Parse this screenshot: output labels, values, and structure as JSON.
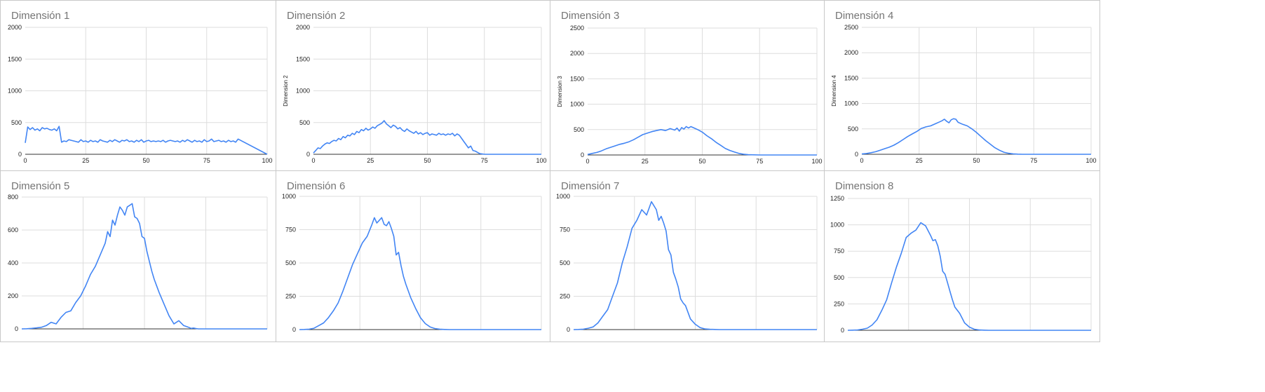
{
  "style": {
    "line_color": "#4285f4",
    "grid_color": "#dddddd",
    "baseline_color": "#333333",
    "title_color": "#757575"
  },
  "chart_data": [
    {
      "type": "line",
      "title": "Dimensión 1",
      "xlabel": "",
      "ylabel": "",
      "xlim": [
        0,
        100
      ],
      "ylim": [
        0,
        2000
      ],
      "xticks": [
        0,
        25,
        50,
        75,
        100
      ],
      "yticks": [
        0,
        500,
        1000,
        1500,
        2000
      ],
      "x_ticks_visible": true,
      "series": [
        {
          "x": [
            0,
            1,
            2,
            3,
            4,
            5,
            6,
            7,
            8,
            9,
            10,
            11,
            12,
            13,
            14,
            15,
            16,
            17,
            18,
            19,
            20,
            21,
            22,
            23,
            24,
            25,
            26,
            27,
            28,
            29,
            30,
            31,
            32,
            33,
            34,
            35,
            36,
            37,
            38,
            39,
            40,
            41,
            42,
            43,
            44,
            45,
            46,
            47,
            48,
            49,
            50,
            51,
            52,
            53,
            54,
            55,
            56,
            57,
            58,
            59,
            60,
            61,
            62,
            63,
            64,
            65,
            66,
            67,
            68,
            69,
            70,
            71,
            72,
            73,
            74,
            75,
            76,
            77,
            78,
            79,
            80,
            81,
            82,
            83,
            84,
            85,
            86,
            87,
            88,
            100
          ],
          "y": [
            180,
            430,
            390,
            420,
            380,
            400,
            370,
            420,
            400,
            410,
            390,
            380,
            400,
            370,
            440,
            190,
            210,
            200,
            230,
            220,
            210,
            200,
            190,
            230,
            200,
            210,
            190,
            220,
            200,
            210,
            190,
            230,
            210,
            200,
            190,
            220,
            200,
            230,
            210,
            190,
            220,
            210,
            230,
            200,
            210,
            190,
            220,
            200,
            230,
            190,
            210,
            220,
            200,
            210,
            200,
            210,
            200,
            220,
            190,
            210,
            220,
            210,
            200,
            210,
            190,
            220,
            200,
            230,
            210,
            190,
            220,
            200,
            210,
            190,
            230,
            200,
            210,
            240,
            200,
            210,
            220,
            200,
            210,
            190,
            220,
            200,
            210,
            190,
            240,
            0
          ]
        }
      ]
    },
    {
      "type": "line",
      "title": "Dimensión 2",
      "xlabel": "",
      "ylabel": "Dimension 2",
      "xlim": [
        0,
        100
      ],
      "ylim": [
        0,
        2000
      ],
      "xticks": [
        0,
        25,
        50,
        75,
        100
      ],
      "yticks": [
        0,
        500,
        1000,
        1500,
        2000
      ],
      "x_ticks_visible": true,
      "series": [
        {
          "x": [
            0,
            1,
            2,
            3,
            4,
            5,
            6,
            7,
            8,
            9,
            10,
            11,
            12,
            13,
            14,
            15,
            16,
            17,
            18,
            19,
            20,
            21,
            22,
            23,
            24,
            25,
            26,
            27,
            28,
            29,
            30,
            31,
            32,
            33,
            34,
            35,
            36,
            37,
            38,
            39,
            40,
            41,
            42,
            43,
            44,
            45,
            46,
            47,
            48,
            49,
            50,
            51,
            52,
            53,
            54,
            55,
            56,
            57,
            58,
            59,
            60,
            61,
            62,
            63,
            64,
            65,
            66,
            67,
            68,
            69,
            70,
            71,
            72,
            73,
            75,
            100
          ],
          "y": [
            20,
            60,
            100,
            90,
            130,
            160,
            180,
            170,
            200,
            220,
            210,
            250,
            230,
            280,
            260,
            300,
            290,
            330,
            310,
            360,
            340,
            390,
            370,
            410,
            380,
            400,
            430,
            410,
            450,
            470,
            490,
            530,
            480,
            450,
            420,
            460,
            440,
            400,
            420,
            380,
            360,
            400,
            370,
            350,
            330,
            360,
            320,
            340,
            310,
            330,
            340,
            300,
            320,
            310,
            300,
            330,
            310,
            320,
            300,
            320,
            310,
            330,
            290,
            320,
            300,
            250,
            200,
            150,
            100,
            130,
            60,
            50,
            30,
            10,
            0,
            0
          ]
        }
      ]
    },
    {
      "type": "line",
      "title": "Dimensión 3",
      "xlabel": "",
      "ylabel": "Dimension 3",
      "xlim": [
        0,
        100
      ],
      "ylim": [
        0,
        2500
      ],
      "xticks": [
        0,
        25,
        50,
        75,
        100
      ],
      "yticks": [
        0,
        500,
        1000,
        1500,
        2000,
        2500
      ],
      "x_ticks_visible": true,
      "series": [
        {
          "x": [
            0,
            2,
            4,
            6,
            8,
            10,
            12,
            14,
            16,
            18,
            20,
            22,
            24,
            26,
            28,
            30,
            32,
            34,
            36,
            38,
            39,
            40,
            41,
            42,
            43,
            44,
            45,
            46,
            47,
            48,
            50,
            52,
            54,
            56,
            58,
            60,
            62,
            64,
            66,
            68,
            70,
            75,
            100
          ],
          "y": [
            10,
            30,
            50,
            80,
            120,
            150,
            180,
            210,
            230,
            260,
            300,
            350,
            400,
            430,
            460,
            480,
            500,
            480,
            520,
            490,
            530,
            470,
            540,
            510,
            560,
            530,
            560,
            540,
            520,
            500,
            450,
            380,
            320,
            250,
            190,
            130,
            90,
            60,
            30,
            15,
            5,
            0,
            0
          ]
        }
      ]
    },
    {
      "type": "line",
      "title": "Dimensión 4",
      "xlabel": "",
      "ylabel": "Dimension 4",
      "xlim": [
        0,
        100
      ],
      "ylim": [
        0,
        2500
      ],
      "xticks": [
        0,
        25,
        50,
        75,
        100
      ],
      "yticks": [
        0,
        500,
        1000,
        1500,
        2000,
        2500
      ],
      "x_ticks_visible": true,
      "series": [
        {
          "x": [
            0,
            2,
            4,
            6,
            8,
            10,
            12,
            14,
            16,
            18,
            20,
            22,
            24,
            26,
            28,
            30,
            32,
            34,
            35,
            36,
            37,
            38,
            39,
            40,
            41,
            42,
            44,
            46,
            48,
            50,
            52,
            54,
            56,
            58,
            60,
            62,
            64,
            66,
            68,
            70,
            100
          ],
          "y": [
            5,
            15,
            30,
            50,
            80,
            110,
            140,
            180,
            230,
            290,
            350,
            400,
            450,
            510,
            540,
            560,
            600,
            640,
            660,
            690,
            650,
            620,
            680,
            700,
            690,
            630,
            590,
            560,
            500,
            430,
            350,
            270,
            200,
            130,
            80,
            40,
            20,
            8,
            3,
            0,
            0
          ]
        }
      ]
    },
    {
      "type": "line",
      "title": "Dimensión 5",
      "xlabel": "",
      "ylabel": "",
      "xlim": [
        0,
        100
      ],
      "ylim": [
        0,
        800
      ],
      "xticks": [
        0,
        25,
        50,
        75,
        100
      ],
      "yticks": [
        0,
        200,
        400,
        600,
        800
      ],
      "x_ticks_visible": false,
      "series": [
        {
          "x": [
            0,
            2,
            4,
            6,
            8,
            10,
            12,
            14,
            16,
            18,
            20,
            22,
            24,
            26,
            28,
            30,
            32,
            34,
            35,
            36,
            37,
            38,
            39,
            40,
            41,
            42,
            43,
            44,
            45,
            46,
            47,
            48,
            49,
            50,
            51,
            52,
            53,
            54,
            56,
            58,
            60,
            62,
            64,
            66,
            68,
            69,
            70,
            71,
            72,
            74,
            76,
            100
          ],
          "y": [
            0,
            1,
            3,
            6,
            10,
            20,
            40,
            30,
            70,
            100,
            110,
            160,
            200,
            260,
            330,
            380,
            450,
            520,
            590,
            560,
            660,
            630,
            690,
            740,
            720,
            690,
            740,
            750,
            760,
            680,
            670,
            640,
            560,
            550,
            470,
            410,
            350,
            300,
            220,
            150,
            80,
            30,
            50,
            20,
            10,
            3,
            5,
            2,
            0,
            0,
            0,
            0
          ]
        }
      ]
    },
    {
      "type": "line",
      "title": "Dimensión 6",
      "xlabel": "",
      "ylabel": "",
      "xlim": [
        0,
        100
      ],
      "ylim": [
        0,
        1000
      ],
      "xticks": [
        0,
        25,
        50,
        75,
        100
      ],
      "yticks": [
        0,
        250,
        500,
        750,
        1000
      ],
      "x_ticks_visible": false,
      "series": [
        {
          "x": [
            0,
            2,
            4,
            6,
            8,
            10,
            12,
            14,
            16,
            18,
            20,
            22,
            24,
            26,
            28,
            30,
            31,
            32,
            33,
            34,
            35,
            36,
            37,
            38,
            39,
            40,
            41,
            42,
            43,
            44,
            46,
            48,
            50,
            52,
            54,
            56,
            58,
            60,
            62,
            64,
            66,
            100
          ],
          "y": [
            0,
            1,
            3,
            10,
            30,
            50,
            90,
            140,
            200,
            290,
            390,
            490,
            570,
            650,
            700,
            790,
            840,
            800,
            820,
            840,
            790,
            780,
            810,
            760,
            700,
            560,
            580,
            480,
            400,
            340,
            240,
            160,
            90,
            45,
            20,
            8,
            3,
            1,
            0,
            0,
            0,
            0
          ]
        }
      ]
    },
    {
      "type": "line",
      "title": "Dimensión 7",
      "xlabel": "",
      "ylabel": "",
      "xlim": [
        0,
        100
      ],
      "ylim": [
        0,
        1000
      ],
      "xticks": [
        0,
        25,
        50,
        75,
        100
      ],
      "yticks": [
        0,
        250,
        500,
        750,
        1000
      ],
      "x_ticks_visible": false,
      "series": [
        {
          "x": [
            0,
            2,
            4,
            6,
            8,
            10,
            12,
            14,
            16,
            18,
            20,
            22,
            24,
            26,
            28,
            30,
            32,
            34,
            35,
            36,
            37,
            38,
            39,
            40,
            41,
            42,
            43,
            44,
            45,
            46,
            48,
            50,
            52,
            54,
            56,
            58,
            60,
            62,
            64,
            66,
            100
          ],
          "y": [
            0,
            1,
            3,
            10,
            20,
            50,
            100,
            150,
            250,
            350,
            500,
            620,
            760,
            820,
            900,
            860,
            960,
            900,
            820,
            850,
            800,
            740,
            600,
            560,
            430,
            380,
            320,
            230,
            200,
            180,
            80,
            40,
            15,
            5,
            2,
            1,
            0,
            0,
            0,
            0,
            0
          ]
        }
      ]
    },
    {
      "type": "line",
      "title": "Dimension 8",
      "xlabel": "",
      "ylabel": "",
      "xlim": [
        0,
        100
      ],
      "ylim": [
        0,
        1250
      ],
      "xticks": [
        0,
        25,
        50,
        75,
        100
      ],
      "yticks": [
        0,
        250,
        500,
        750,
        1000,
        1250
      ],
      "x_ticks_visible": false,
      "series": [
        {
          "x": [
            0,
            2,
            4,
            6,
            8,
            10,
            12,
            14,
            16,
            18,
            20,
            22,
            24,
            26,
            28,
            30,
            32,
            34,
            35,
            36,
            37,
            38,
            39,
            40,
            41,
            42,
            43,
            44,
            46,
            48,
            50,
            52,
            54,
            56,
            58,
            60,
            62,
            64,
            66,
            100
          ],
          "y": [
            0,
            1,
            3,
            10,
            20,
            50,
            100,
            190,
            290,
            450,
            600,
            730,
            880,
            920,
            950,
            1020,
            990,
            900,
            850,
            860,
            800,
            700,
            560,
            530,
            450,
            370,
            290,
            220,
            160,
            70,
            30,
            10,
            3,
            1,
            0,
            0,
            0,
            0,
            0,
            0
          ]
        }
      ]
    }
  ]
}
